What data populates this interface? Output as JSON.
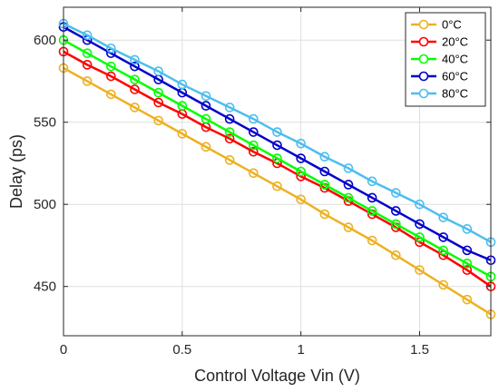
{
  "chart_data": {
    "type": "line",
    "title": "",
    "xlabel": "Control Voltage Vin (V)",
    "ylabel": "Delay (ps)",
    "xlim": [
      0,
      1.8
    ],
    "ylim": [
      420,
      620
    ],
    "xticks": [
      0,
      0.5,
      1,
      1.5
    ],
    "xtick_labels": [
      "0",
      "0.5",
      "1",
      "1.5"
    ],
    "yticks": [
      450,
      500,
      550,
      600
    ],
    "ytick_labels": [
      "450",
      "500",
      "550",
      "600"
    ],
    "grid": true,
    "legend_position": "top-right",
    "marker": "open-circle",
    "x": [
      0,
      0.1,
      0.2,
      0.3,
      0.4,
      0.5,
      0.6,
      0.7,
      0.8,
      0.9,
      1.0,
      1.1,
      1.2,
      1.3,
      1.4,
      1.5,
      1.6,
      1.7,
      1.8
    ],
    "series": [
      {
        "name": "0°C",
        "color": "#EDB120",
        "values": [
          583,
          575,
          567,
          559,
          551,
          543,
          535,
          527,
          519,
          511,
          503,
          494,
          486,
          478,
          469,
          460,
          451,
          442,
          433
        ]
      },
      {
        "name": "20°C",
        "color": "#FF0000",
        "values": [
          593,
          585,
          578,
          570,
          562,
          555,
          547,
          540,
          532,
          525,
          517,
          510,
          502,
          494,
          486,
          477,
          469,
          460,
          450
        ]
      },
      {
        "name": "40°C",
        "color": "#00FF00",
        "values": [
          600,
          592,
          584,
          576,
          568,
          560,
          552,
          544,
          536,
          528,
          520,
          512,
          504,
          496,
          488,
          480,
          472,
          464,
          456
        ]
      },
      {
        "name": "60°C",
        "color": "#0000CC",
        "values": [
          608,
          600,
          592,
          584,
          576,
          568,
          560,
          552,
          544,
          536,
          528,
          520,
          512,
          504,
          496,
          488,
          480,
          472,
          466
        ]
      },
      {
        "name": "80°C",
        "color": "#4DBEEE",
        "values": [
          610,
          603,
          595,
          588,
          581,
          573,
          566,
          559,
          552,
          544,
          537,
          529,
          522,
          514,
          507,
          500,
          492,
          485,
          477
        ]
      }
    ]
  }
}
